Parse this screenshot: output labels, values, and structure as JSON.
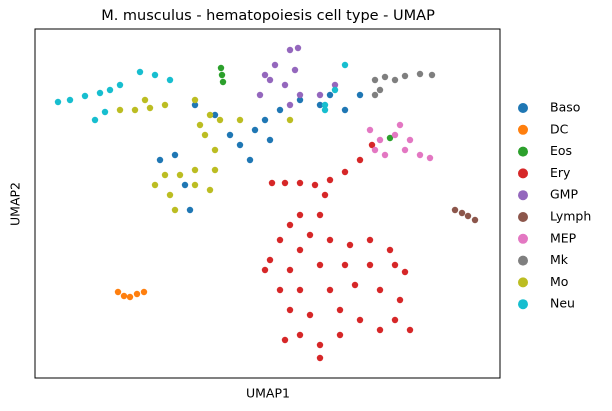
{
  "chart_data": {
    "type": "scatter",
    "title": "M. musculus - hematopoiesis cell type - UMAP",
    "xlabel": "UMAP1",
    "ylabel": "UMAP2",
    "xlim": [
      0,
      465
    ],
    "ylim": [
      0,
      349
    ],
    "legend": "right",
    "series": [
      {
        "name": "Baso",
        "color": "#1f77b4",
        "x": [
          205,
          220,
          230,
          245,
          265,
          285,
          295,
          215,
          195,
          180,
          160,
          140,
          125,
          150,
          155,
          310,
          325,
          235
        ],
        "y": [
          233,
          248,
          258,
          268,
          278,
          273,
          283,
          218,
          243,
          263,
          273,
          223,
          218,
          193,
          168,
          268,
          283,
          238
        ]
      },
      {
        "name": "DC",
        "color": "#ff7f0e",
        "x": [
          83,
          89,
          95,
          102,
          109
        ],
        "y": [
          86,
          82,
          81,
          84,
          86
        ]
      },
      {
        "name": "Eos",
        "color": "#2ca02c",
        "x": [
          186,
          187,
          188,
          355
        ],
        "y": [
          310,
          303,
          296,
          240
        ]
      },
      {
        "name": "Ery",
        "color": "#d62728",
        "x": [
          337,
          325,
          310,
          295,
          280,
          265,
          250,
          237,
          290,
          285,
          265,
          255,
          275,
          245,
          265,
          295,
          315,
          335,
          355,
          235,
          230,
          255,
          285,
          310,
          335,
          360,
          370,
          245,
          265,
          295,
          320,
          345,
          365,
          255,
          275,
          305,
          325,
          345,
          375,
          265,
          285,
          285,
          305,
          250,
          360
        ],
        "y": [
          233,
          218,
          206,
          198,
          193,
          195,
          195,
          195,
          183,
          163,
          163,
          153,
          143,
          138,
          128,
          138,
          133,
          138,
          128,
          118,
          108,
          108,
          113,
          113,
          113,
          113,
          106,
          88,
          88,
          88,
          93,
          88,
          78,
          68,
          63,
          68,
          58,
          48,
          48,
          43,
          33,
          20,
          43,
          38,
          58
        ]
      },
      {
        "name": "GMP",
        "color": "#9467bd",
        "x": [
          230,
          240,
          255,
          263,
          260,
          250,
          265,
          255,
          235,
          225,
          285,
          300
        ],
        "y": [
          303,
          313,
          328,
          330,
          308,
          293,
          283,
          273,
          298,
          283,
          283,
          293
        ]
      },
      {
        "name": "Lymph",
        "color": "#8c564b",
        "x": [
          420,
          427,
          433,
          440
        ],
        "y": [
          168,
          165,
          162,
          158
        ]
      },
      {
        "name": "MEP",
        "color": "#e377c2",
        "x": [
          335,
          345,
          360,
          370,
          385,
          395,
          350,
          340,
          365,
          375
        ],
        "y": [
          248,
          238,
          243,
          228,
          223,
          220,
          223,
          228,
          253,
          238
        ]
      },
      {
        "name": "Mk",
        "color": "#7f7f7f",
        "x": [
          340,
          350,
          360,
          370,
          385,
          397,
          340,
          345
        ],
        "y": [
          298,
          301,
          298,
          302,
          304,
          303,
          283,
          288
        ]
      },
      {
        "name": "Mo",
        "color": "#bcbd22",
        "x": [
          85,
          100,
          115,
          130,
          160,
          175,
          185,
          170,
          180,
          160,
          145,
          130,
          120,
          135,
          160,
          175,
          140,
          180,
          165,
          205,
          255,
          110
        ],
        "y": [
          268,
          268,
          270,
          273,
          278,
          263,
          258,
          243,
          228,
          208,
          203,
          203,
          193,
          183,
          193,
          188,
          168,
          208,
          253,
          258,
          258,
          278
        ]
      },
      {
        "name": "Neu",
        "color": "#17becf",
        "x": [
          23,
          35,
          50,
          65,
          75,
          85,
          105,
          120,
          135,
          60,
          70,
          290,
          300,
          310,
          290
        ],
        "y": [
          276,
          278,
          282,
          285,
          288,
          293,
          306,
          303,
          298,
          258,
          266,
          273,
          288,
          313,
          268
        ]
      }
    ]
  }
}
